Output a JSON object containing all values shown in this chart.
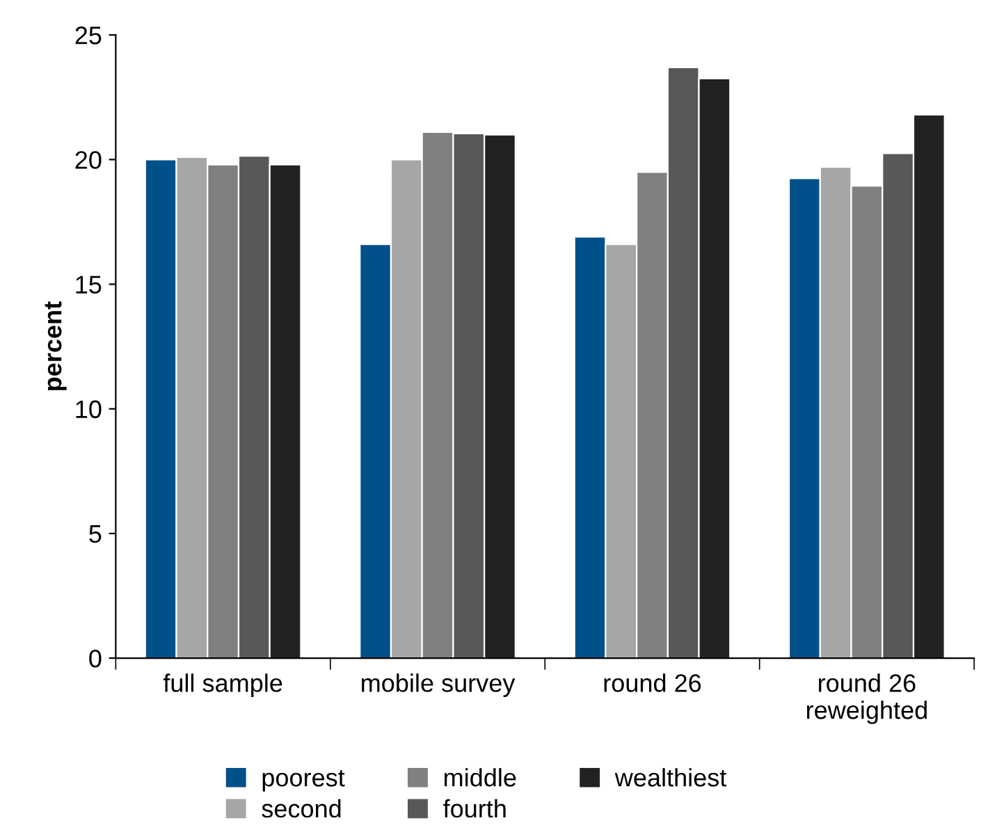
{
  "chart_data": {
    "type": "bar",
    "ylabel": "percent",
    "categories": [
      "full sample",
      "mobile survey",
      "round 26",
      "round 26\nreweighted"
    ],
    "series": [
      {
        "name": "poorest",
        "color": "#00508a",
        "values": [
          20.0,
          16.6,
          16.9,
          19.25
        ]
      },
      {
        "name": "second",
        "color": "#a6a6a6",
        "values": [
          20.1,
          20.0,
          16.6,
          19.7
        ]
      },
      {
        "name": "middle",
        "color": "#808080",
        "values": [
          19.8,
          21.1,
          19.5,
          18.95
        ]
      },
      {
        "name": "fourth",
        "color": "#58585a",
        "values": [
          20.15,
          21.05,
          23.7,
          20.25
        ]
      },
      {
        "name": "wealthiest",
        "color": "#222222",
        "values": [
          19.8,
          21.0,
          23.25,
          21.8
        ]
      }
    ],
    "ylim": [
      0,
      25
    ],
    "yticks": [
      0,
      5,
      10,
      15,
      20,
      25
    ],
    "grid": false,
    "legend": "bottom"
  }
}
